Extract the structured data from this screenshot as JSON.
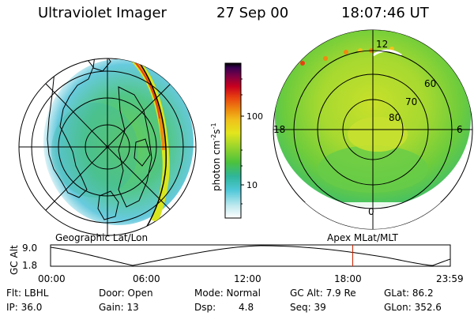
{
  "header": {
    "instrument": "Ultraviolet Imager",
    "date": "27 Sep 00",
    "time": "18:07:46 UT"
  },
  "colorbar": {
    "unit_label": "photon cm",
    "unit_sup1": "-2",
    "unit_mid": "s",
    "unit_sup2": "-1",
    "ticks": [
      "100",
      "10"
    ]
  },
  "left_panel": {
    "label": "Geographic Lat/Lon"
  },
  "right_panel": {
    "label": "Apex MLat/MLT",
    "mlt_labels": {
      "top": "12",
      "left": "18",
      "right": "6",
      "bottom": "0"
    },
    "lat_labels": [
      "60",
      "70",
      "80"
    ]
  },
  "timeline": {
    "ylabel": "GC Alt",
    "ytick_top": "9.0",
    "ytick_bottom": "1.8",
    "xticks": [
      "00:00",
      "06:00",
      "12:00",
      "18:00",
      "23:59"
    ],
    "current_marker_hours": 18.13
  },
  "status": {
    "row1": {
      "filter": "Flt: LBHL",
      "door": "Door: Open",
      "mode": "Mode: Normal",
      "gc_alt": "GC Alt: 7.9 Re",
      "glat": "GLat:  86.2"
    },
    "row2": {
      "ip": "IP: 36.0",
      "gain": "Gain: 13",
      "dsp_label": "Dsp:",
      "dsp_value": "4.8",
      "seq": "Seq: 39",
      "glon": "GLon: 352.6"
    }
  },
  "colors": {
    "colorbar_stops": [
      "#ffffff",
      "#bfe9ef",
      "#4fc7d8",
      "#2fb59a",
      "#4cc23c",
      "#9bd52c",
      "#e3e51d",
      "#f0c21c",
      "#ee8a10",
      "#e84010",
      "#c8001e",
      "#7a0046",
      "#3a0050",
      "#000000"
    ],
    "marker": "#cc2200"
  }
}
